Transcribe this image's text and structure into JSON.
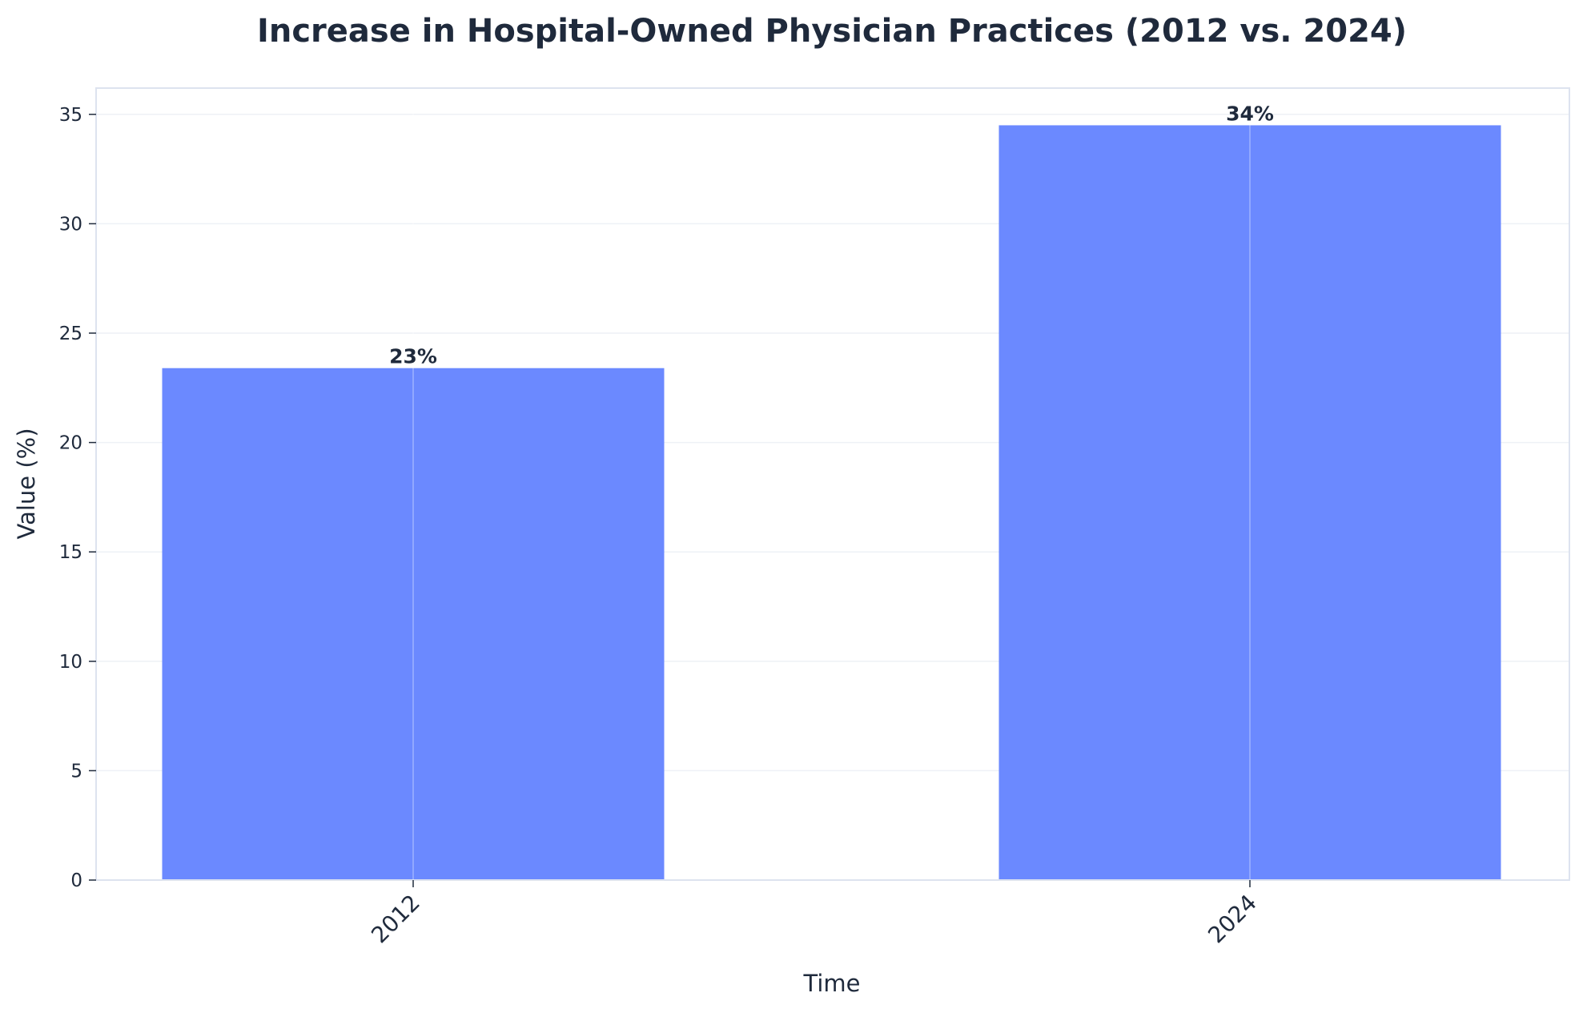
{
  "chart_data": {
    "type": "bar",
    "title": "Increase in Hospital-Owned Physician Practices (2012 vs. 2024)",
    "xlabel": "Time",
    "ylabel": "Value (%)",
    "categories": [
      "2012",
      "2024"
    ],
    "values": [
      23.4,
      34.5
    ],
    "data_labels": [
      "23%",
      "34%"
    ],
    "ylim": [
      0,
      36.2
    ],
    "yticks": [
      0,
      5,
      10,
      15,
      20,
      25,
      30,
      35
    ],
    "grid": true,
    "colors": {
      "bar": "#6b89ff",
      "text": "#1f2a3c",
      "spine": "#dde3ef",
      "grid": "#eef1f6"
    }
  }
}
